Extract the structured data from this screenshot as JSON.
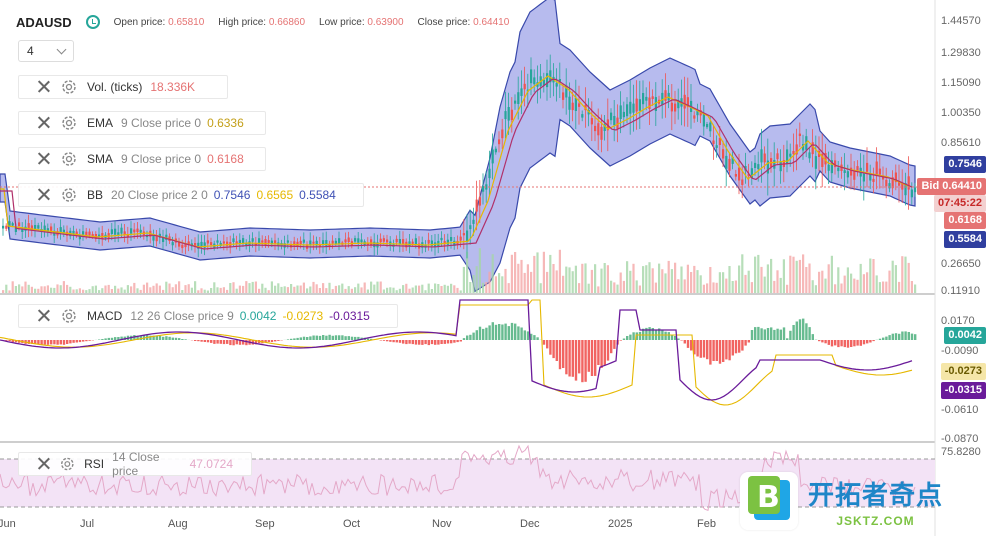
{
  "header": {
    "symbol": "ADAUSD",
    "open_label": "Open price:",
    "open_value": "0.65810",
    "high_label": "High price:",
    "high_value": "0.66860",
    "low_label": "Low price:",
    "low_value": "0.63900",
    "close_label": "Close price:",
    "close_value": "0.64410"
  },
  "timeframe": {
    "value": "4"
  },
  "indicators": [
    {
      "name": "Vol. (ticks)",
      "params": "",
      "values": [
        "18.336K"
      ],
      "colors": [
        "#e57373"
      ]
    },
    {
      "name": "EMA",
      "params": "9 Close price 0",
      "values": [
        "0.6336"
      ],
      "colors": [
        "#c4a01a"
      ]
    },
    {
      "name": "SMA",
      "params": "9 Close price 0",
      "values": [
        "0.6168"
      ],
      "colors": [
        "#e57373"
      ]
    },
    {
      "name": "BB",
      "params": "20 Close price 2 0",
      "values": [
        "0.7546",
        "0.6565",
        "0.5584"
      ],
      "colors": [
        "#3f51b5",
        "#e6b800",
        "#3f51b5"
      ]
    },
    {
      "name": "MACD",
      "params": "12 26 Close price 9",
      "values": [
        "0.0042",
        "-0.0273",
        "-0.0315"
      ],
      "colors": [
        "#26a69a",
        "#e6b800",
        "#6a1b9a"
      ]
    },
    {
      "name": "RSI",
      "params": "14 Close price",
      "values": [
        "47.0724"
      ],
      "colors": [
        "#e4a8c8"
      ]
    }
  ],
  "price_axis": [
    "1.44570",
    "1.29830",
    "1.15090",
    "1.00350",
    "0.85610",
    "0.26650",
    "0.11910"
  ],
  "macd_axis": [
    "0.0170",
    "-0.0090",
    "-0.0610",
    "-0.0870"
  ],
  "rsi_axis": [
    "75.8280"
  ],
  "price_tags": [
    {
      "label": "0.7546",
      "color": "#303f9f"
    },
    {
      "label": "Bid 0.64410",
      "color": "#e57373"
    },
    {
      "label": "07:45:22",
      "color": "#f3d0d0",
      "text_color": "#c62828"
    },
    {
      "label": "0.6168",
      "color": "#e57373"
    },
    {
      "label": "0.5584",
      "color": "#303f9f"
    }
  ],
  "macd_tags": [
    {
      "label": "0.0042",
      "color": "#26a69a"
    },
    {
      "label": "-0.0273",
      "color": "#f5e6a8",
      "text_color": "#6a5a00"
    },
    {
      "label": "-0.0315",
      "color": "#6a1b9a"
    }
  ],
  "x_axis": [
    "Jun",
    "Jul",
    "Aug",
    "Sep",
    "Oct",
    "Nov",
    "Dec",
    "2025",
    "Feb"
  ],
  "watermark": {
    "title": "开拓者奇点",
    "url": "JSKTZ.COM",
    "logo_letter": "B"
  },
  "colors": {
    "bull": "#26a69a",
    "bear": "#ef5350",
    "band_fill": "#7b84e0",
    "band_line": "#3949ab"
  }
}
